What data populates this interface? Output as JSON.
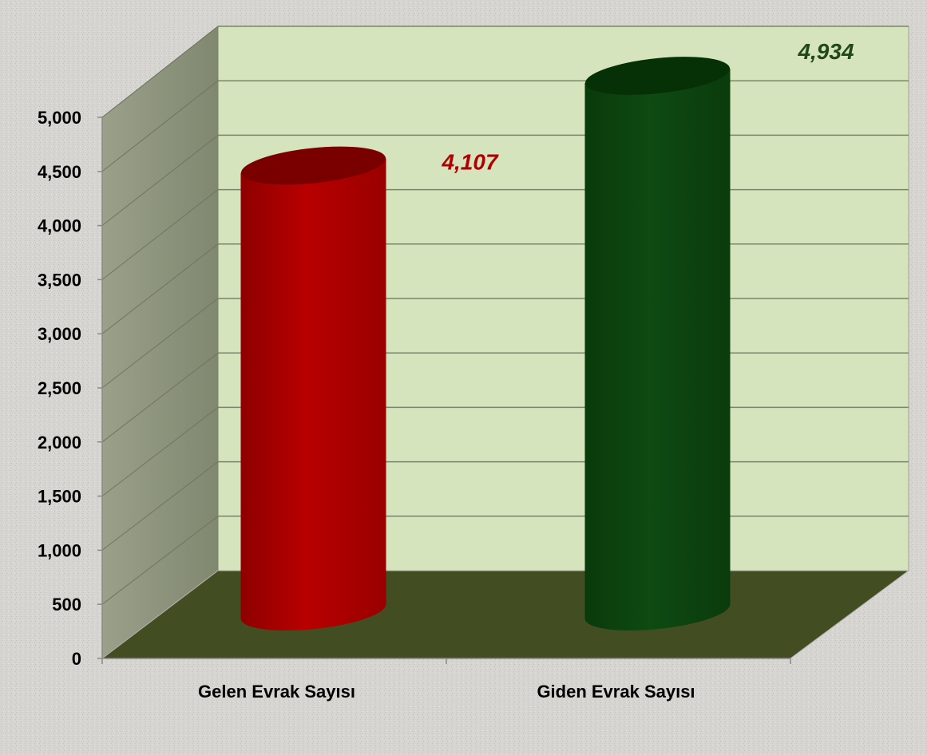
{
  "chart_data": {
    "type": "bar",
    "style": "3d-cylinder",
    "categories": [
      "Gelen Evrak Sayısı",
      "Giden Evrak Sayısı"
    ],
    "values": [
      4107,
      4934
    ],
    "data_labels": [
      "4,107",
      "4,934"
    ],
    "bar_colors": [
      "#b30000",
      "#0b3d0b"
    ],
    "label_colors": [
      "#b00000",
      "#1f4a16"
    ],
    "ylim": [
      0,
      5000
    ],
    "y_tick_labels": [
      "0",
      "500",
      "1,000",
      "1,500",
      "2,000",
      "2,500",
      "3,000",
      "3,500",
      "4,000",
      "4,500",
      "5,000"
    ],
    "grid": true,
    "legend": "none",
    "wall_color": "#d6e4bd",
    "side_wall_color": "#8e957a",
    "floor_color": "#424d22",
    "background_color": "#d4d3cf"
  }
}
